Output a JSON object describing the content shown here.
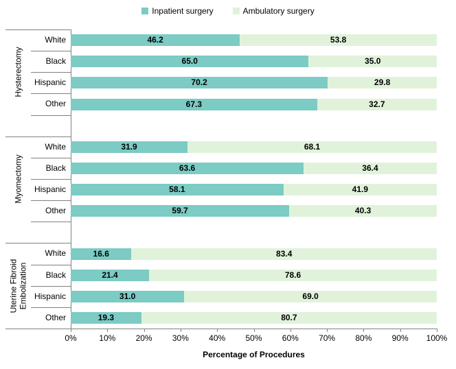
{
  "legend": {
    "items": [
      {
        "label": "Inpatient surgery",
        "color": "#7CCBC4"
      },
      {
        "label": "Ambulatory surgery",
        "color": "#E1F2DA"
      }
    ]
  },
  "chart_data": {
    "type": "bar",
    "orientation": "horizontal",
    "stacked": true,
    "title": "",
    "xlabel": "Percentage of Procedures",
    "xlim": [
      0,
      100
    ],
    "x_tick_labels": [
      "0%",
      "10%",
      "20%",
      "30%",
      "40%",
      "50%",
      "60%",
      "70%",
      "80%",
      "90%",
      "100%"
    ],
    "legend_position": "top",
    "grid": false,
    "colors": {
      "inpatient": "#7CCBC4",
      "ambulatory": "#E1F2DA",
      "axis_lines": "#808080",
      "text": "#000000"
    },
    "groups": [
      {
        "label": "Hysterectomy",
        "label_lines": [
          "Hysterectomy"
        ],
        "categories": [
          "White",
          "Black",
          "Hispanic",
          "Other"
        ],
        "series": [
          {
            "name": "Inpatient surgery",
            "values": [
              46.2,
              65.0,
              70.2,
              67.3
            ]
          },
          {
            "name": "Ambulatory surgery",
            "values": [
              53.8,
              35.0,
              29.8,
              32.7
            ]
          }
        ]
      },
      {
        "label": "Myomectomy",
        "label_lines": [
          "Myomectomy"
        ],
        "categories": [
          "White",
          "Black",
          "Hispanic",
          "Other"
        ],
        "series": [
          {
            "name": "Inpatient surgery",
            "values": [
              31.9,
              63.6,
              58.1,
              59.7
            ]
          },
          {
            "name": "Ambulatory surgery",
            "values": [
              68.1,
              36.4,
              41.9,
              40.3
            ]
          }
        ]
      },
      {
        "label": "Uterine Fibroid Embolization",
        "label_lines": [
          "Uterine Fibroid",
          "Embolization"
        ],
        "categories": [
          "White",
          "Black",
          "Hispanic",
          "Other"
        ],
        "series": [
          {
            "name": "Inpatient surgery",
            "values": [
              16.6,
              21.4,
              31.0,
              19.3
            ]
          },
          {
            "name": "Ambulatory surgery",
            "values": [
              83.4,
              78.6,
              69.0,
              80.7
            ]
          }
        ]
      }
    ]
  }
}
